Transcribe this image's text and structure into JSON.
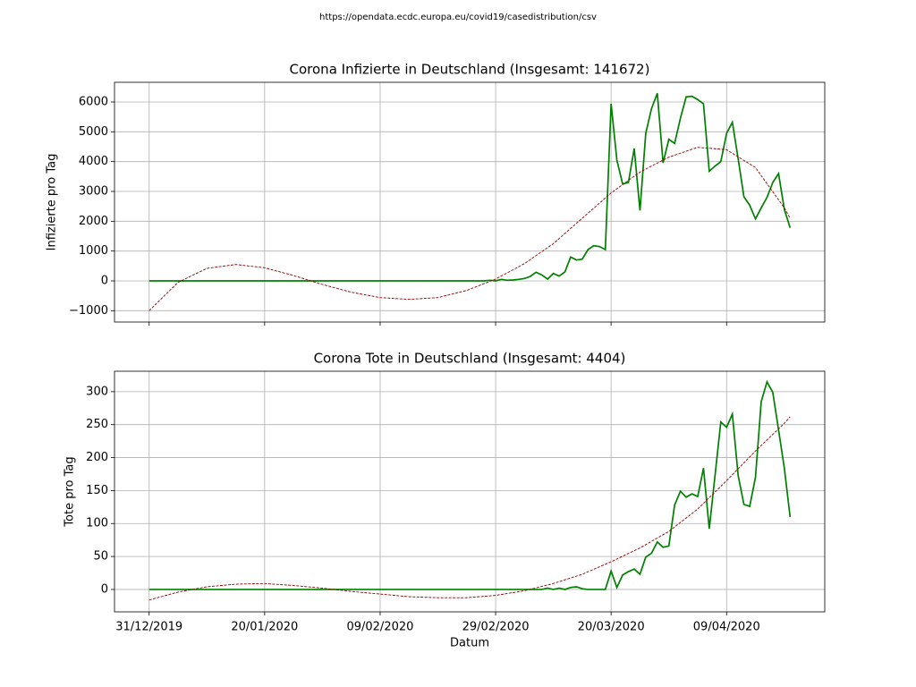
{
  "suptitle": "https://opendata.ecdc.europa.eu/covid19/casedistribution/csv",
  "chart_data": [
    {
      "type": "line",
      "title": "Corona Infizierte in Deutschland (Insgesamt: 141672)",
      "ylabel": "Infizierte pro Tag",
      "x": [
        "31/12/2019",
        "01/01/2020",
        "02/01/2020",
        "03/01/2020",
        "04/01/2020",
        "05/01/2020",
        "06/01/2020",
        "07/01/2020",
        "08/01/2020",
        "09/01/2020",
        "10/01/2020",
        "11/01/2020",
        "12/01/2020",
        "13/01/2020",
        "14/01/2020",
        "15/01/2020",
        "16/01/2020",
        "17/01/2020",
        "18/01/2020",
        "19/01/2020",
        "20/01/2020",
        "21/01/2020",
        "22/01/2020",
        "23/01/2020",
        "24/01/2020",
        "25/01/2020",
        "26/01/2020",
        "27/01/2020",
        "28/01/2020",
        "29/01/2020",
        "30/01/2020",
        "31/01/2020",
        "01/02/2020",
        "02/02/2020",
        "03/02/2020",
        "04/02/2020",
        "05/02/2020",
        "06/02/2020",
        "07/02/2020",
        "08/02/2020",
        "09/02/2020",
        "10/02/2020",
        "11/02/2020",
        "12/02/2020",
        "13/02/2020",
        "14/02/2020",
        "15/02/2020",
        "16/02/2020",
        "17/02/2020",
        "18/02/2020",
        "19/02/2020",
        "20/02/2020",
        "21/02/2020",
        "22/02/2020",
        "23/02/2020",
        "24/02/2020",
        "25/02/2020",
        "26/02/2020",
        "27/02/2020",
        "28/02/2020",
        "29/02/2020",
        "01/03/2020",
        "02/03/2020",
        "03/03/2020",
        "04/03/2020",
        "05/03/2020",
        "06/03/2020",
        "07/03/2020",
        "08/03/2020",
        "09/03/2020",
        "10/03/2020",
        "11/03/2020",
        "12/03/2020",
        "13/03/2020",
        "14/03/2020",
        "15/03/2020",
        "16/03/2020",
        "17/03/2020",
        "18/03/2020",
        "19/03/2020",
        "20/03/2020",
        "21/03/2020",
        "22/03/2020",
        "23/03/2020",
        "24/03/2020",
        "25/03/2020",
        "26/03/2020",
        "27/03/2020",
        "28/03/2020",
        "29/03/2020",
        "30/03/2020",
        "31/03/2020",
        "01/04/2020",
        "02/04/2020",
        "03/04/2020",
        "04/04/2020",
        "05/04/2020",
        "06/04/2020",
        "07/04/2020",
        "08/04/2020",
        "09/04/2020",
        "10/04/2020",
        "11/04/2020",
        "12/04/2020",
        "13/04/2020",
        "14/04/2020",
        "15/04/2020",
        "16/04/2020",
        "17/04/2020",
        "18/04/2020",
        "19/04/2020",
        "20/04/2020"
      ],
      "series": [
        {
          "color": "#008000",
          "linestyle": "solid",
          "values": [
            0,
            0,
            0,
            0,
            0,
            0,
            0,
            0,
            0,
            0,
            0,
            0,
            0,
            0,
            0,
            0,
            0,
            0,
            0,
            0,
            0,
            0,
            0,
            0,
            0,
            0,
            0,
            0,
            0,
            0,
            0,
            0,
            0,
            0,
            0,
            0,
            0,
            0,
            0,
            0,
            0,
            0,
            0,
            0,
            0,
            0,
            0,
            0,
            0,
            0,
            0,
            0,
            0,
            0,
            0,
            0,
            0,
            0,
            0,
            20,
            0,
            50,
            20,
            30,
            50,
            80,
            150,
            290,
            200,
            60,
            250,
            160,
            300,
            800,
            700,
            730,
            1050,
            1180,
            1150,
            1050,
            5940,
            4050,
            3250,
            3300,
            4440,
            2360,
            4950,
            5780,
            6290,
            3960,
            4750,
            4610,
            5450,
            6170,
            6190,
            6080,
            5940,
            3680,
            3850,
            4000,
            4950,
            5320,
            4100,
            2820,
            2540,
            2080,
            2450,
            2800,
            3300,
            3600,
            2400,
            1780
          ]
        },
        {
          "color": "#8b0000",
          "linestyle": "dashed",
          "x": [
            "31/12/2019",
            "05/01/2020",
            "10/01/2020",
            "15/01/2020",
            "20/01/2020",
            "25/01/2020",
            "30/01/2020",
            "04/02/2020",
            "09/02/2020",
            "14/02/2020",
            "19/02/2020",
            "24/02/2020",
            "29/02/2020",
            "05/03/2020",
            "10/03/2020",
            "15/03/2020",
            "20/03/2020",
            "25/03/2020",
            "30/03/2020",
            "04/04/2020",
            "09/04/2020",
            "14/04/2020",
            "19/04/2020",
            "20/04/2020"
          ],
          "values": [
            -1000,
            -50,
            420,
            550,
            440,
            180,
            -120,
            -380,
            -560,
            -620,
            -560,
            -320,
            60,
            580,
            1250,
            2100,
            2950,
            3650,
            4150,
            4480,
            4400,
            3800,
            2450,
            2100
          ]
        }
      ],
      "xlim": [
        "25/12/2019",
        "26/04/2020"
      ],
      "xticks": [
        "31/12/2019",
        "20/01/2020",
        "09/02/2020",
        "29/02/2020",
        "20/03/2020",
        "09/04/2020"
      ],
      "xticklabels": false,
      "ylim": [
        -1380,
        6660
      ],
      "yticks": [
        {
          "value": -1000,
          "label": "−1000"
        },
        0,
        1000,
        2000,
        3000,
        4000,
        5000,
        6000
      ],
      "grid": true
    },
    {
      "type": "line",
      "title": "Corona Tote in Deutschland (Insgesamt: 4404)",
      "ylabel": "Tote pro Tag",
      "xlabel": "Datum",
      "x": [
        "31/12/2019",
        "01/01/2020",
        "02/01/2020",
        "03/01/2020",
        "04/01/2020",
        "05/01/2020",
        "06/01/2020",
        "07/01/2020",
        "08/01/2020",
        "09/01/2020",
        "10/01/2020",
        "11/01/2020",
        "12/01/2020",
        "13/01/2020",
        "14/01/2020",
        "15/01/2020",
        "16/01/2020",
        "17/01/2020",
        "18/01/2020",
        "19/01/2020",
        "20/01/2020",
        "21/01/2020",
        "22/01/2020",
        "23/01/2020",
        "24/01/2020",
        "25/01/2020",
        "26/01/2020",
        "27/01/2020",
        "28/01/2020",
        "29/01/2020",
        "30/01/2020",
        "31/01/2020",
        "01/02/2020",
        "02/02/2020",
        "03/02/2020",
        "04/02/2020",
        "05/02/2020",
        "06/02/2020",
        "07/02/2020",
        "08/02/2020",
        "09/02/2020",
        "10/02/2020",
        "11/02/2020",
        "12/02/2020",
        "13/02/2020",
        "14/02/2020",
        "15/02/2020",
        "16/02/2020",
        "17/02/2020",
        "18/02/2020",
        "19/02/2020",
        "20/02/2020",
        "21/02/2020",
        "22/02/2020",
        "23/02/2020",
        "24/02/2020",
        "25/02/2020",
        "26/02/2020",
        "27/02/2020",
        "28/02/2020",
        "29/02/2020",
        "01/03/2020",
        "02/03/2020",
        "03/03/2020",
        "04/03/2020",
        "05/03/2020",
        "06/03/2020",
        "07/03/2020",
        "08/03/2020",
        "09/03/2020",
        "10/03/2020",
        "11/03/2020",
        "12/03/2020",
        "13/03/2020",
        "14/03/2020",
        "15/03/2020",
        "16/03/2020",
        "17/03/2020",
        "18/03/2020",
        "19/03/2020",
        "20/03/2020",
        "21/03/2020",
        "22/03/2020",
        "23/03/2020",
        "24/03/2020",
        "25/03/2020",
        "26/03/2020",
        "27/03/2020",
        "28/03/2020",
        "29/03/2020",
        "30/03/2020",
        "31/03/2020",
        "01/04/2020",
        "02/04/2020",
        "03/04/2020",
        "04/04/2020",
        "05/04/2020",
        "06/04/2020",
        "07/04/2020",
        "08/04/2020",
        "09/04/2020",
        "10/04/2020",
        "11/04/2020",
        "12/04/2020",
        "13/04/2020",
        "14/04/2020",
        "15/04/2020",
        "16/04/2020",
        "17/04/2020",
        "18/04/2020",
        "19/04/2020",
        "20/04/2020"
      ],
      "series": [
        {
          "color": "#008000",
          "linestyle": "solid",
          "values": [
            0,
            0,
            0,
            0,
            0,
            0,
            0,
            0,
            0,
            0,
            0,
            0,
            0,
            0,
            0,
            0,
            0,
            0,
            0,
            0,
            0,
            0,
            0,
            0,
            0,
            0,
            0,
            0,
            0,
            0,
            0,
            0,
            0,
            0,
            0,
            0,
            0,
            0,
            0,
            0,
            0,
            0,
            0,
            0,
            0,
            0,
            0,
            0,
            0,
            0,
            0,
            0,
            0,
            0,
            0,
            0,
            0,
            0,
            0,
            0,
            0,
            0,
            0,
            0,
            0,
            0,
            0,
            0,
            0,
            2,
            0,
            2,
            0,
            3,
            4,
            1,
            0,
            0,
            0,
            0,
            28,
            3,
            22,
            27,
            31,
            23,
            49,
            55,
            72,
            64,
            66,
            128,
            149,
            140,
            145,
            141,
            184,
            92,
            173,
            254,
            246,
            266,
            173,
            129,
            126,
            170,
            285,
            315,
            299,
            242,
            184,
            110
          ]
        },
        {
          "color": "#8b0000",
          "linestyle": "dashed",
          "x": [
            "31/12/2019",
            "05/01/2020",
            "10/01/2020",
            "15/01/2020",
            "20/01/2020",
            "25/01/2020",
            "30/01/2020",
            "04/02/2020",
            "09/02/2020",
            "14/02/2020",
            "19/02/2020",
            "24/02/2020",
            "29/02/2020",
            "05/03/2020",
            "10/03/2020",
            "15/03/2020",
            "20/03/2020",
            "25/03/2020",
            "30/03/2020",
            "04/04/2020",
            "09/04/2020",
            "14/04/2020",
            "19/04/2020",
            "20/04/2020"
          ],
          "values": [
            -16,
            -4,
            4,
            8,
            9,
            6,
            2,
            -3,
            -7,
            -11,
            -12.5,
            -12.5,
            -9,
            -2,
            9,
            23,
            42,
            63,
            88,
            122,
            165,
            210,
            252,
            262
          ]
        }
      ],
      "xlim": [
        "25/12/2019",
        "26/04/2020"
      ],
      "xticks": [
        "31/12/2019",
        "20/01/2020",
        "09/02/2020",
        "29/02/2020",
        "20/03/2020",
        "09/04/2020"
      ],
      "xticklabels": true,
      "ylim": [
        -34,
        331
      ],
      "yticks": [
        0,
        50,
        100,
        150,
        200,
        250,
        300
      ],
      "grid": true
    }
  ]
}
